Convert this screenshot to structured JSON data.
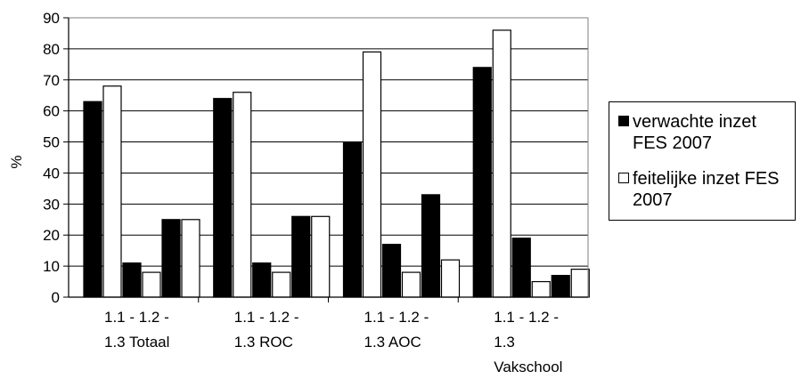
{
  "chart_data": {
    "type": "bar",
    "ylabel": "%",
    "ylim": [
      0,
      90
    ],
    "yticks": [
      0,
      10,
      20,
      30,
      40,
      50,
      60,
      70,
      80,
      90
    ],
    "grid": "horizontal",
    "legend_position": "right",
    "groups": [
      "Totaal",
      "ROC",
      "AOC",
      "Vakschool"
    ],
    "categories": [
      "1.1",
      "1.2",
      "1.3"
    ],
    "category_label_rows": [
      [
        "1.1 - 1.2 -",
        "1.3   Totaal"
      ],
      [
        "1.1 - 1.2 -",
        "1.3   ROC"
      ],
      [
        "1.1 - 1.2 -",
        "1.3   AOC"
      ],
      [
        "1.1 - 1.2 -",
        "1.3",
        "Vakschool"
      ]
    ],
    "series": [
      {
        "name": "verwachte inzet FES 2007",
        "color": "#000000",
        "values": [
          [
            63,
            11,
            25
          ],
          [
            64,
            11,
            26
          ],
          [
            50,
            17,
            33
          ],
          [
            74,
            19,
            7
          ]
        ]
      },
      {
        "name": "feitelijke inzet FES 2007",
        "color": "#ffffff",
        "values": [
          [
            68,
            8,
            25
          ],
          [
            66,
            8,
            26
          ],
          [
            79,
            8,
            12
          ],
          [
            86,
            5,
            9
          ]
        ]
      }
    ]
  }
}
